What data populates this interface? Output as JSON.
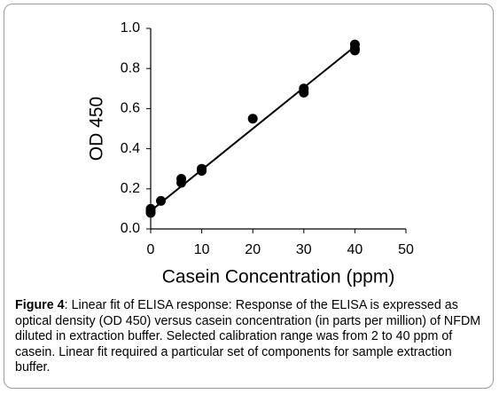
{
  "chart_data": {
    "type": "scatter",
    "y_label": "OD 450",
    "x_label": "Casein Concentration (ppm)",
    "xlim": [
      0,
      50
    ],
    "xticks": [
      0,
      10,
      20,
      30,
      40,
      50
    ],
    "ylim": [
      0,
      1
    ],
    "yticks": [
      {
        "value": 0,
        "label": "0.0"
      },
      0.2,
      0.4,
      0.6,
      0.8,
      {
        "value": 1,
        "label": "1.0"
      }
    ],
    "series": [
      {
        "color": "#000000",
        "x": [
          0,
          0,
          0,
          2,
          6,
          6,
          10,
          10,
          20,
          30,
          30,
          40,
          40,
          40
        ],
        "values": [
          0.08,
          0.09,
          0.1,
          0.14,
          0.23,
          0.25,
          0.29,
          0.3,
          0.55,
          0.68,
          0.7,
          0.89,
          0.9,
          0.92
        ]
      }
    ],
    "fit": {
      "color": "#000000",
      "x": [
        0,
        40
      ],
      "values": [
        0.09,
        0.91
      ]
    }
  },
  "caption": {
    "label": "Figure 4",
    "text": ": Linear fit of ELISA response: Response of the ELISA is expressed as optical density (OD 450) versus casein concentration (in parts per million) of NFDM diluted in extraction buffer. Selected calibration range was from 2 to 40 ppm of casein. Linear fit required a particular set of components for sample extraction buffer."
  }
}
